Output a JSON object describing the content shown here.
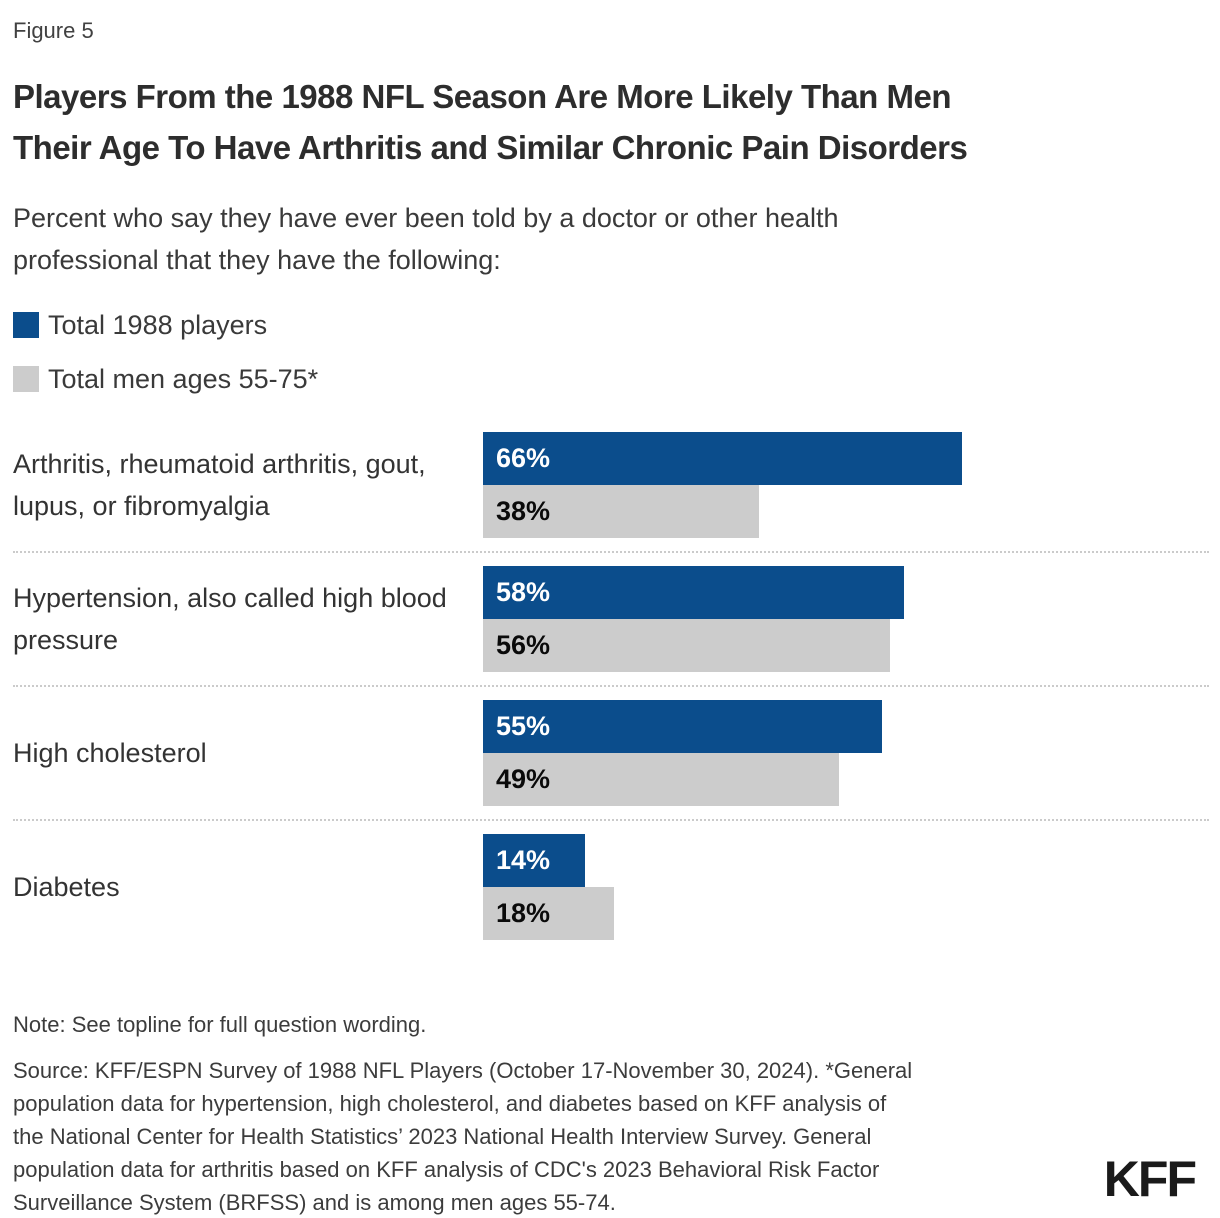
{
  "figure_label": "Figure 5",
  "title_lines": [
    "Players From the 1988 NFL Season Are More Likely Than Men",
    "Their Age To Have Arthritis and Similar Chronic Pain Disorders"
  ],
  "subtitle_lines": [
    "Percent who say they have ever been told by a doctor or other health",
    "professional that they have the following:"
  ],
  "legend": [
    {
      "label": "Total 1988 players",
      "color": "#0B4D8C"
    },
    {
      "label": "Total men ages 55-75*",
      "color": "#CCCCCC"
    }
  ],
  "chart_data": {
    "type": "bar",
    "orientation": "horizontal",
    "title": "Players From the 1988 NFL Season Are More Likely Than Men Their Age To Have Arthritis and Similar Chronic Pain Disorders",
    "subtitle": "Percent who say they have ever been told by a doctor or other health professional that they have the following:",
    "categories": [
      "Arthritis, rheumatoid arthritis, gout, lupus, or fibromyalgia",
      "Hypertension, also called high blood pressure",
      "High cholesterol",
      "Diabetes"
    ],
    "series": [
      {
        "name": "Total 1988 players",
        "color": "#0B4D8C",
        "values": [
          66,
          58,
          55,
          14
        ]
      },
      {
        "name": "Total men ages 55-75*",
        "color": "#CCCCCC",
        "values": [
          38,
          56,
          49,
          18
        ]
      }
    ],
    "value_suffix": "%",
    "xlim": [
      0,
      100
    ],
    "grid": false,
    "legend_position": "top-left"
  },
  "note": "Note: See topline for full question wording.",
  "source_lines": [
    "Source: KFF/ESPN Survey of 1988 NFL Players (October 17-November 30, 2024). *General",
    "population data for hypertension, high cholesterol, and diabetes based on KFF analysis of",
    "the National Center for Health Statistics’ 2023 National Health Interview Survey. General",
    "population data for arthritis based on KFF analysis of CDC's 2023 Behavioral Risk Factor",
    "Surveillance System (BRFSS) and is among men ages 55-74."
  ],
  "logo": "KFF"
}
